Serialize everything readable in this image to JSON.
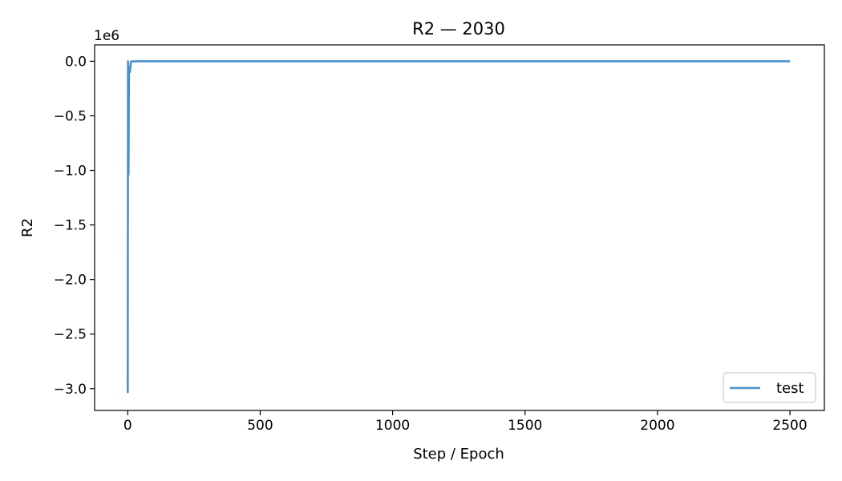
{
  "chart_data": {
    "type": "line",
    "title": "R2 — 2030",
    "xlabel": "Step / Epoch",
    "ylabel": "R2",
    "y_offset_label": "1e6",
    "xlim": [
      -125,
      2630
    ],
    "ylim": [
      -3.2,
      0.15
    ],
    "x_ticks": [
      0,
      500,
      1000,
      1500,
      2000,
      2500
    ],
    "x_tick_labels": [
      "0",
      "500",
      "1000",
      "1500",
      "2000",
      "2500"
    ],
    "y_ticks": [
      0.0,
      -0.5,
      -1.0,
      -1.5,
      -2.0,
      -2.5,
      -3.0
    ],
    "y_tick_labels": [
      "0.0",
      "−0.5",
      "−1.0",
      "−1.5",
      "−2.0",
      "−2.5",
      "−3.0"
    ],
    "legend_position": "lower-right",
    "series": [
      {
        "name": "test",
        "color": "#4a90c8",
        "x": [
          0,
          1,
          2,
          3,
          4,
          5,
          8,
          12,
          20,
          50,
          100,
          500,
          1000,
          1500,
          2000,
          2500
        ],
        "y": [
          -3.04,
          0.0,
          -1.0,
          -1.04,
          -0.4,
          -0.05,
          -0.1,
          -0.003,
          -0.001,
          0.0,
          0.0,
          0.0,
          0.0,
          0.0,
          0.0,
          0.0
        ]
      }
    ]
  }
}
